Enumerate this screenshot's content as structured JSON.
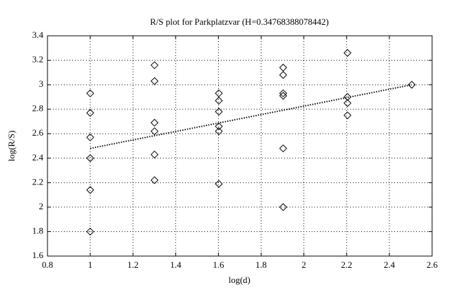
{
  "chart_data": {
    "type": "scatter",
    "title": "R/S plot for Parkplatzvar (H=0.34768388078442)",
    "x_label": "log(d)",
    "y_label": "log(R/S)",
    "xlim": [
      0.8,
      2.6
    ],
    "xticks": [
      0.8,
      1,
      1.2,
      1.4,
      1.6,
      1.8,
      2,
      2.2,
      2.4,
      2.6
    ],
    "ylim": [
      1.6,
      3.4
    ],
    "yticks": [
      1.6,
      1.8,
      2,
      2.2,
      2.4,
      2.6,
      2.8,
      3,
      3.2,
      3.4
    ],
    "grid": true,
    "series": [
      {
        "color": "#000000",
        "marker": "diamond",
        "x": [
          1,
          1,
          1,
          1,
          1,
          1,
          1.301,
          1.301,
          1.301,
          1.301,
          1.301,
          1.301,
          1.602,
          1.602,
          1.602,
          1.602,
          1.602,
          1.602,
          1.903,
          1.903,
          1.903,
          1.903,
          1.903,
          1.903,
          2.204,
          2.204,
          2.204,
          2.204,
          2.505
        ],
        "values": [
          2.93,
          2.77,
          2.57,
          2.4,
          2.14,
          1.8,
          3.16,
          3.03,
          2.69,
          2.62,
          2.43,
          2.22,
          2.93,
          2.87,
          2.78,
          2.66,
          2.62,
          2.19,
          3.14,
          3.08,
          2.93,
          2.91,
          2.48,
          2.0,
          3.26,
          2.9,
          2.85,
          2.75,
          3.0
        ]
      },
      {
        "color": "#000000",
        "style": "dotted",
        "x": [
          1,
          2.505
        ],
        "values": [
          2.48,
          3.0
        ]
      }
    ]
  }
}
